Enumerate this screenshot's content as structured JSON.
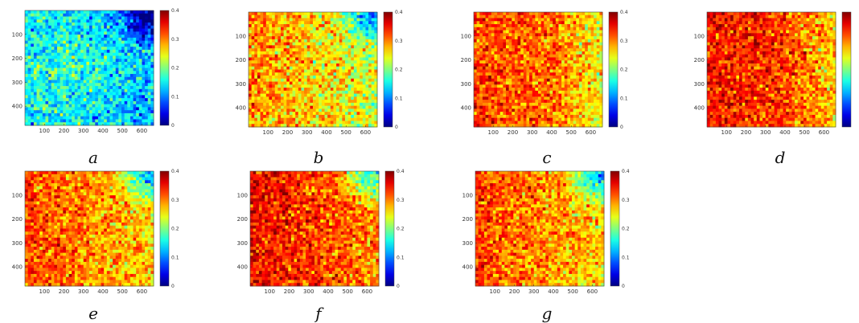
{
  "chart_data": [
    {
      "type": "heatmap",
      "label": "a",
      "x_ticks": [
        100,
        200,
        300,
        400,
        500,
        600
      ],
      "y_ticks": [
        100,
        200,
        300,
        400
      ],
      "colorbar": {
        "range": [
          0,
          0.4
        ],
        "ticks": [
          "0",
          "0.1",
          "0.2",
          "0.3",
          "0.4"
        ]
      },
      "mean_value": 0.17,
      "spread": 0.05,
      "hot_region": "center",
      "cool_region": "top-right"
    },
    {
      "type": "heatmap",
      "label": "b",
      "x_ticks": [
        100,
        200,
        300,
        400,
        500,
        600
      ],
      "y_ticks": [
        100,
        200,
        300,
        400
      ],
      "colorbar": {
        "range": [
          0,
          0.4
        ],
        "ticks": [
          "0",
          "0.1",
          "0.2",
          "0.3",
          "0.4"
        ]
      },
      "mean_value": 0.28,
      "spread": 0.05,
      "hot_region": "left",
      "cool_region": "top-right"
    },
    {
      "type": "heatmap",
      "label": "c",
      "x_ticks": [
        100,
        200,
        300,
        400,
        500,
        600
      ],
      "y_ticks": [
        100,
        200,
        300,
        400
      ],
      "colorbar": {
        "range": [
          0,
          0.4
        ],
        "ticks": [
          "0",
          "0.1",
          "0.2",
          "0.3",
          "0.4"
        ]
      },
      "mean_value": 0.31,
      "spread": 0.045,
      "hot_region": "left",
      "cool_region": "right"
    },
    {
      "type": "heatmap",
      "label": "d",
      "x_ticks": [
        100,
        200,
        300,
        400,
        500,
        600
      ],
      "y_ticks": [
        100,
        200,
        300,
        400
      ],
      "colorbar": {
        "range": [
          0,
          0.4
        ],
        "ticks": []
      },
      "mean_value": 0.33,
      "spread": 0.045,
      "hot_region": "left",
      "cool_region": "right"
    },
    {
      "type": "heatmap",
      "label": "e",
      "x_ticks": [
        100,
        200,
        300,
        400,
        500,
        600
      ],
      "y_ticks": [
        100,
        200,
        300,
        400
      ],
      "colorbar": {
        "range": [
          0,
          0.4
        ],
        "ticks": [
          "0",
          "0.1",
          "0.2",
          "0.3",
          "0.4"
        ]
      },
      "mean_value": 0.31,
      "spread": 0.045,
      "hot_region": "left",
      "cool_region": "top-right"
    },
    {
      "type": "heatmap",
      "label": "f",
      "x_ticks": [
        100,
        200,
        300,
        400,
        500,
        600
      ],
      "y_ticks": [
        100,
        200,
        300,
        400
      ],
      "colorbar": {
        "range": [
          0,
          0.4
        ],
        "ticks": [
          "0",
          "0.1",
          "0.2",
          "0.3",
          "0.4"
        ]
      },
      "mean_value": 0.34,
      "spread": 0.045,
      "hot_region": "left",
      "cool_region": "top-right"
    },
    {
      "type": "heatmap",
      "label": "g",
      "x_ticks": [
        100,
        200,
        300,
        400,
        500,
        600
      ],
      "y_ticks": [
        100,
        200,
        300,
        400
      ],
      "colorbar": {
        "range": [
          0,
          0.4
        ],
        "ticks": [
          "0",
          "0.1",
          "0.2",
          "0.3",
          "0.4"
        ]
      },
      "mean_value": 0.31,
      "spread": 0.045,
      "hot_region": "left",
      "cool_region": "top-right"
    }
  ]
}
